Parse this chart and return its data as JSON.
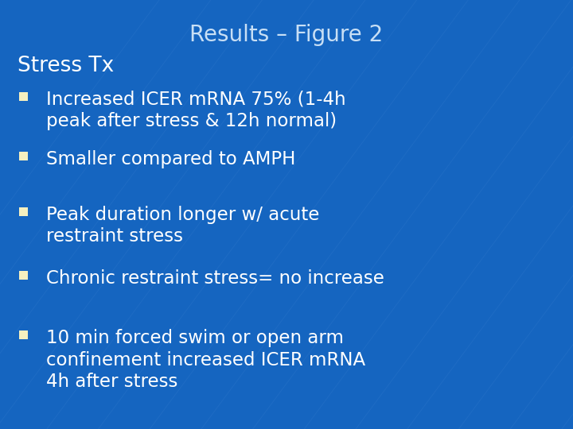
{
  "title": "Results – Figure 2",
  "bg_color": "#1565C0",
  "title_color": "#c8dff5",
  "text_color": "#ffffff",
  "bullet_sq_color": "#f5f0c0",
  "heading": "Stress Tx",
  "bullets": [
    "Increased ICER mRNA 75% (1-4h\npeak after stress & 12h normal)",
    "Smaller compared to AMPH",
    "Peak duration longer w/ acute\nrestraint stress",
    "Chronic restraint stress= no increase",
    "10 min forced swim or open arm\nconfinement increased ICER mRNA\n4h after stress"
  ],
  "title_fontsize": 20,
  "heading_fontsize": 19,
  "bullet_fontsize": 16.5,
  "figsize": [
    7.2,
    5.4
  ],
  "dpi": 100
}
